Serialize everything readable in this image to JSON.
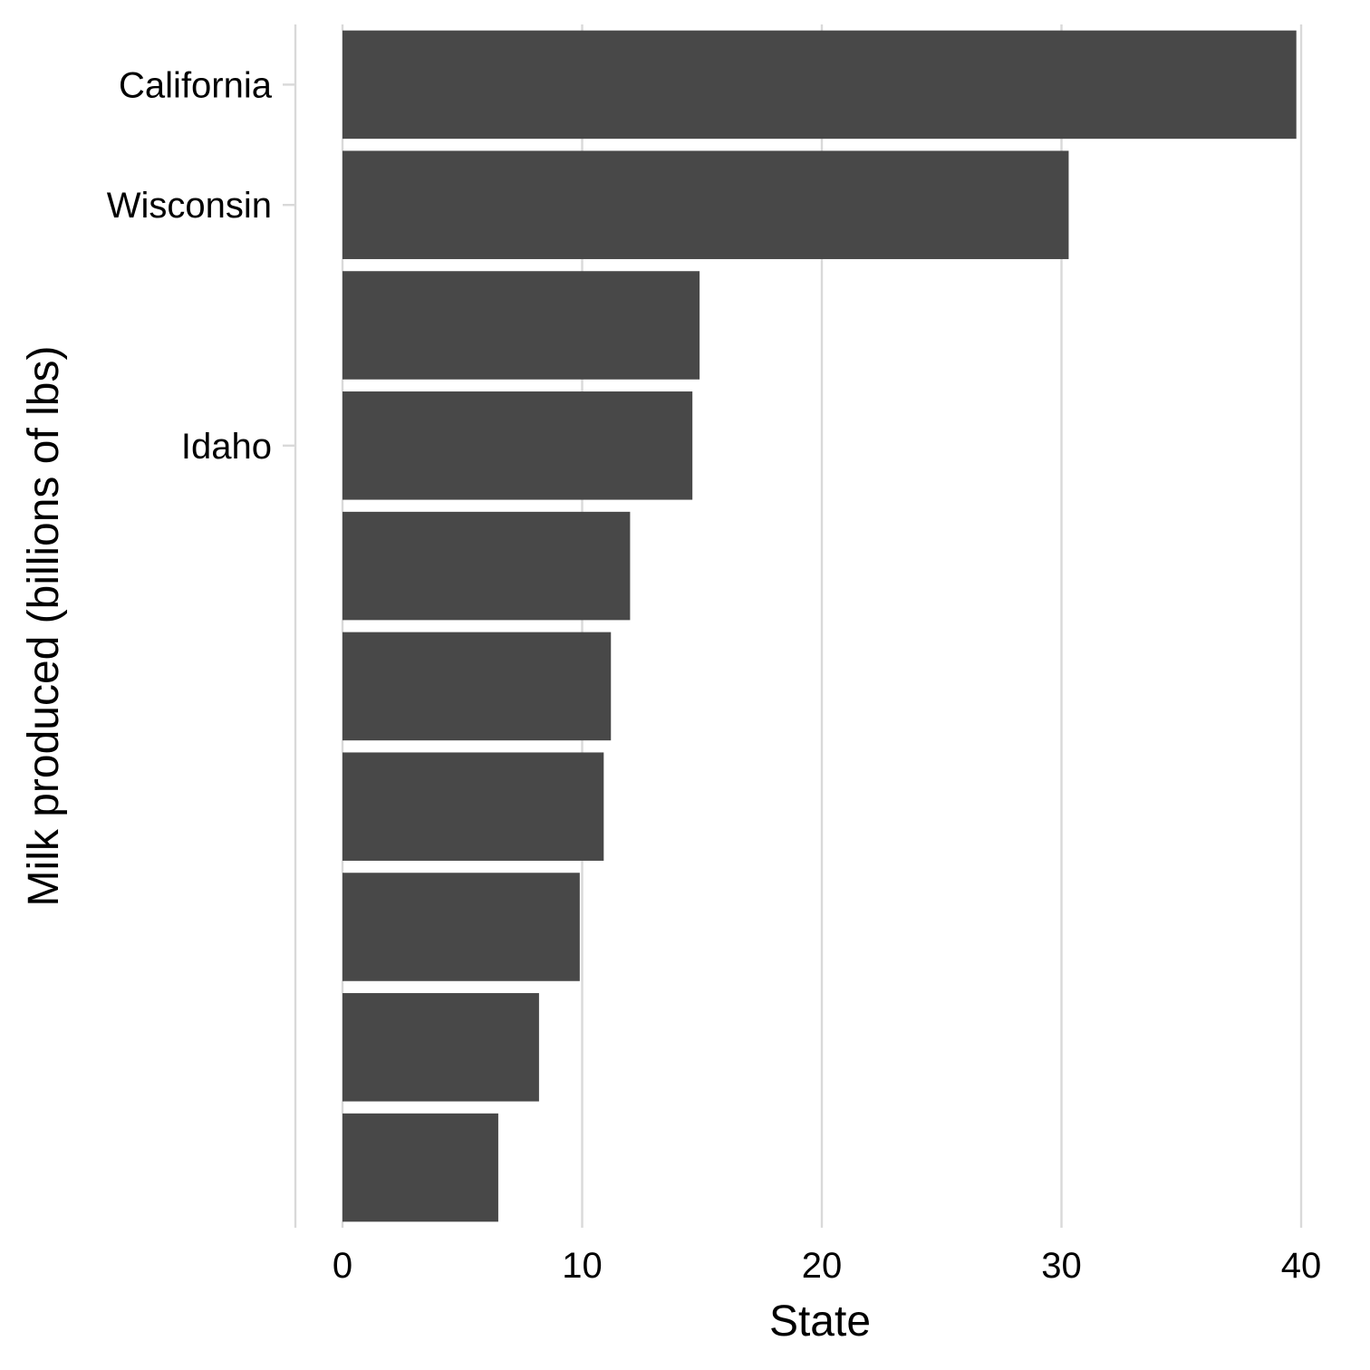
{
  "chart_data": {
    "type": "bar",
    "orientation": "horizontal",
    "title": "",
    "xlabel": "State",
    "ylabel": "Milk produced (billions of lbs)",
    "xlim": [
      0,
      40
    ],
    "x_ticks": [
      0,
      10,
      20,
      30,
      40
    ],
    "y_tick_labels": [
      {
        "category_index": 0,
        "label": "California"
      },
      {
        "category_index": 1,
        "label": "Wisconsin"
      },
      {
        "category_index": 3,
        "label": "Idaho"
      }
    ],
    "values": [
      39.8,
      30.3,
      14.9,
      14.6,
      12.0,
      11.2,
      10.9,
      9.9,
      8.2,
      6.5
    ],
    "bar_color": "#484848",
    "grid": "vertical major gridlines",
    "grid_color": "#d9d9d9",
    "legend": "none"
  }
}
